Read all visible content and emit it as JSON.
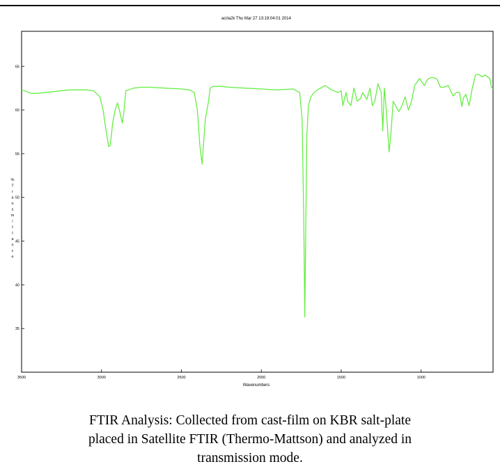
{
  "caption": {
    "lines": [
      "FTIR Analysis: Collected from cast-film on KBR salt-plate",
      "placed in Satellite FTIR (Thermo-Mattson) and analyzed in",
      "transmission mode."
    ]
  },
  "chart_data": {
    "type": "line",
    "title": "acrla2k   Thu Mar 27 13:19:04:01 2014",
    "xlabel": "Wavenumbers",
    "ylabel": "%Transmittance",
    "xlim": [
      3500,
      550
    ],
    "ylim": [
      30,
      69
    ],
    "x_reversed": true,
    "grid": false,
    "xticks": [
      3500,
      3000,
      2500,
      2000,
      1500,
      1000
    ],
    "yticks": [
      35,
      40,
      45,
      50,
      55,
      60,
      65
    ],
    "colors": {
      "line": "#66ee44",
      "axes": "#000000"
    },
    "series": [
      {
        "x": [
          3500,
          3440,
          3400,
          3300,
          3200,
          3100,
          3050,
          3010,
          2990,
          2970,
          2955,
          2945,
          2930,
          2915,
          2900,
          2885,
          2870,
          2858,
          2848,
          2830,
          2800,
          2750,
          2700,
          2600,
          2500,
          2450,
          2420,
          2400,
          2385,
          2370,
          2360,
          2350,
          2340,
          2330,
          2320,
          2300,
          2250,
          2200,
          2100,
          2000,
          1900,
          1800,
          1760,
          1745,
          1735,
          1728,
          1722,
          1715,
          1705,
          1690,
          1670,
          1640,
          1600,
          1560,
          1520,
          1500,
          1490,
          1470,
          1460,
          1440,
          1420,
          1400,
          1380,
          1365,
          1340,
          1320,
          1305,
          1290,
          1270,
          1250,
          1240,
          1230,
          1220,
          1200,
          1190,
          1175,
          1160,
          1140,
          1120,
          1100,
          1080,
          1060,
          1040,
          1010,
          980,
          960,
          940,
          920,
          900,
          880,
          860,
          830,
          800,
          780,
          760,
          745,
          735,
          720,
          700,
          680,
          660,
          640,
          620,
          600,
          570,
          560,
          550
        ],
        "y": [
          62.3,
          61.9,
          61.9,
          62.1,
          62.3,
          62.3,
          62.2,
          61.5,
          60.0,
          57.5,
          55.8,
          56.0,
          58.5,
          60.0,
          60.8,
          59.8,
          58.5,
          60.0,
          62.2,
          62.3,
          62.5,
          62.6,
          62.6,
          62.5,
          62.4,
          62.3,
          62.0,
          60.0,
          56.0,
          53.8,
          56.5,
          59.0,
          60.0,
          61.0,
          62.5,
          62.7,
          62.7,
          62.6,
          62.5,
          62.4,
          62.3,
          62.4,
          62.0,
          59.0,
          48.0,
          36.3,
          46.0,
          57.0,
          60.5,
          61.5,
          62.0,
          62.4,
          62.8,
          62.3,
          62.0,
          62.2,
          60.5,
          62.0,
          61.0,
          60.5,
          62.5,
          61.0,
          61.3,
          62.0,
          61.2,
          62.5,
          60.5,
          61.0,
          63.0,
          62.0,
          57.6,
          62.5,
          60.5,
          55.2,
          57.0,
          61.0,
          60.5,
          59.8,
          60.5,
          61.5,
          60.0,
          61.0,
          62.8,
          63.6,
          62.8,
          63.5,
          63.7,
          63.7,
          63.5,
          62.6,
          62.6,
          62.8,
          61.6,
          62.0,
          62.0,
          60.4,
          61.4,
          61.8,
          60.5,
          62.5,
          64.0,
          64.1,
          63.8,
          64.0,
          63.6,
          62.6,
          62.4
        ]
      }
    ]
  }
}
